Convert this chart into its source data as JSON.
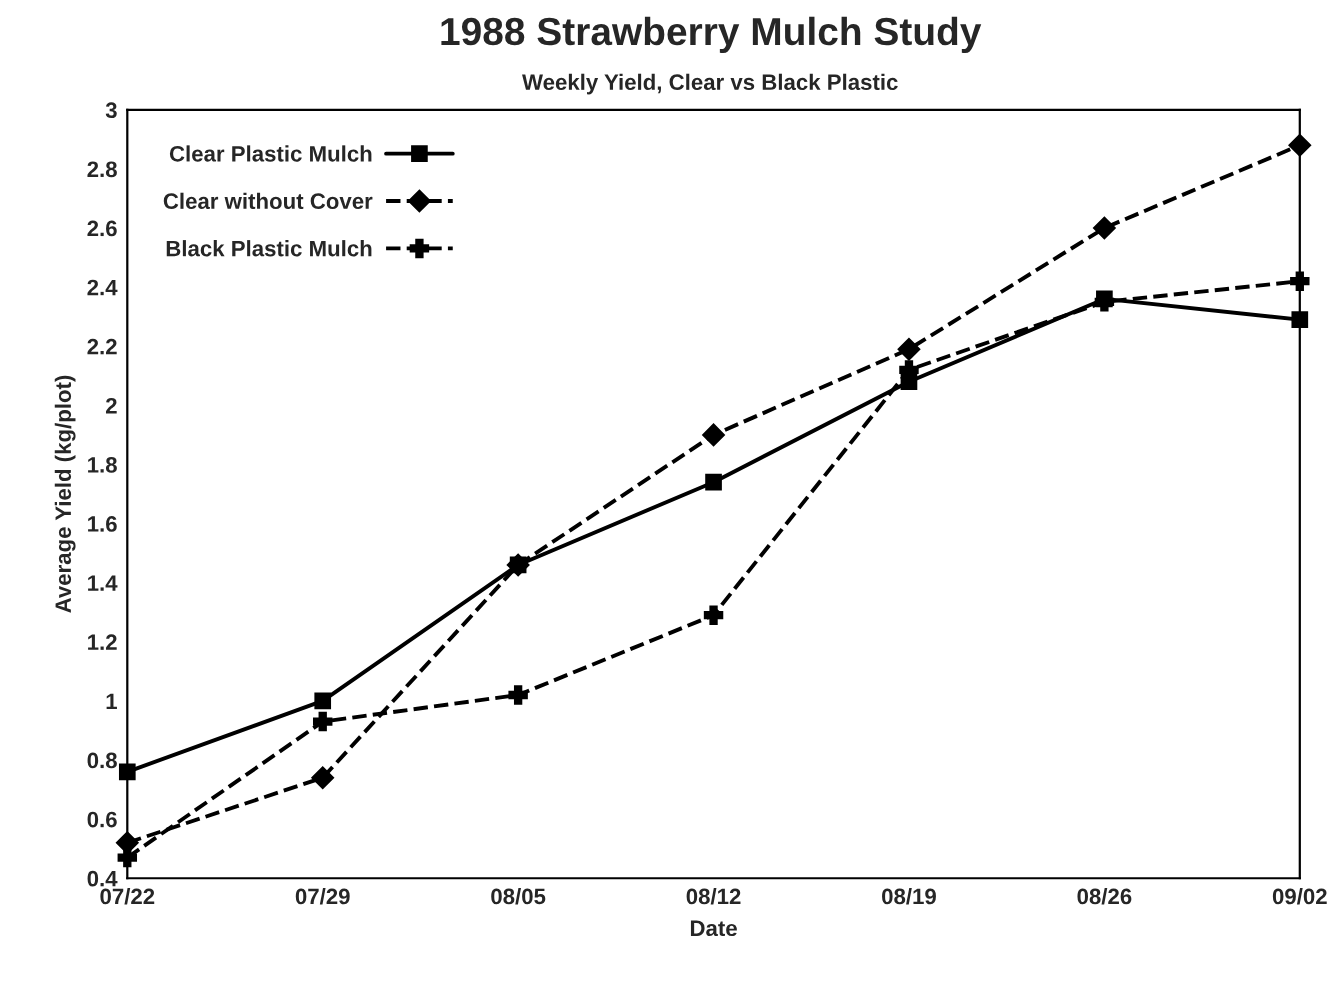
{
  "chart_data": {
    "type": "line",
    "title": "1988 Strawberry Mulch Study",
    "subtitle": "Weekly Yield, Clear vs Black Plastic",
    "xlabel": "Date",
    "ylabel": "Average Yield (kg/plot)",
    "categories": [
      "07/22",
      "07/29",
      "08/05",
      "08/12",
      "08/19",
      "08/26",
      "09/02"
    ],
    "series": [
      {
        "name": "Clear Plastic Mulch",
        "color": "#000000",
        "marker": "square",
        "line_style": "solid",
        "values": [
          0.76,
          1.0,
          1.46,
          1.74,
          2.08,
          2.36,
          2.29
        ]
      },
      {
        "name": "Clear without Cover",
        "color": "#000000",
        "marker": "diamond",
        "line_style": "dashed",
        "values": [
          0.52,
          0.74,
          1.46,
          1.9,
          2.19,
          2.6,
          2.88
        ]
      },
      {
        "name": "Black Plastic Mulch",
        "color": "#000000",
        "marker": "cross",
        "line_style": "dashed",
        "values": [
          0.47,
          0.93,
          1.02,
          1.29,
          2.12,
          2.35,
          2.42
        ]
      }
    ],
    "ylim": [
      0.4,
      3
    ],
    "yticks": [
      0.4,
      0.6,
      0.8,
      1,
      1.2,
      1.4,
      1.6,
      1.8,
      2,
      2.2,
      2.4,
      2.6,
      2.8,
      3
    ],
    "grid": false,
    "legend": "top left"
  }
}
